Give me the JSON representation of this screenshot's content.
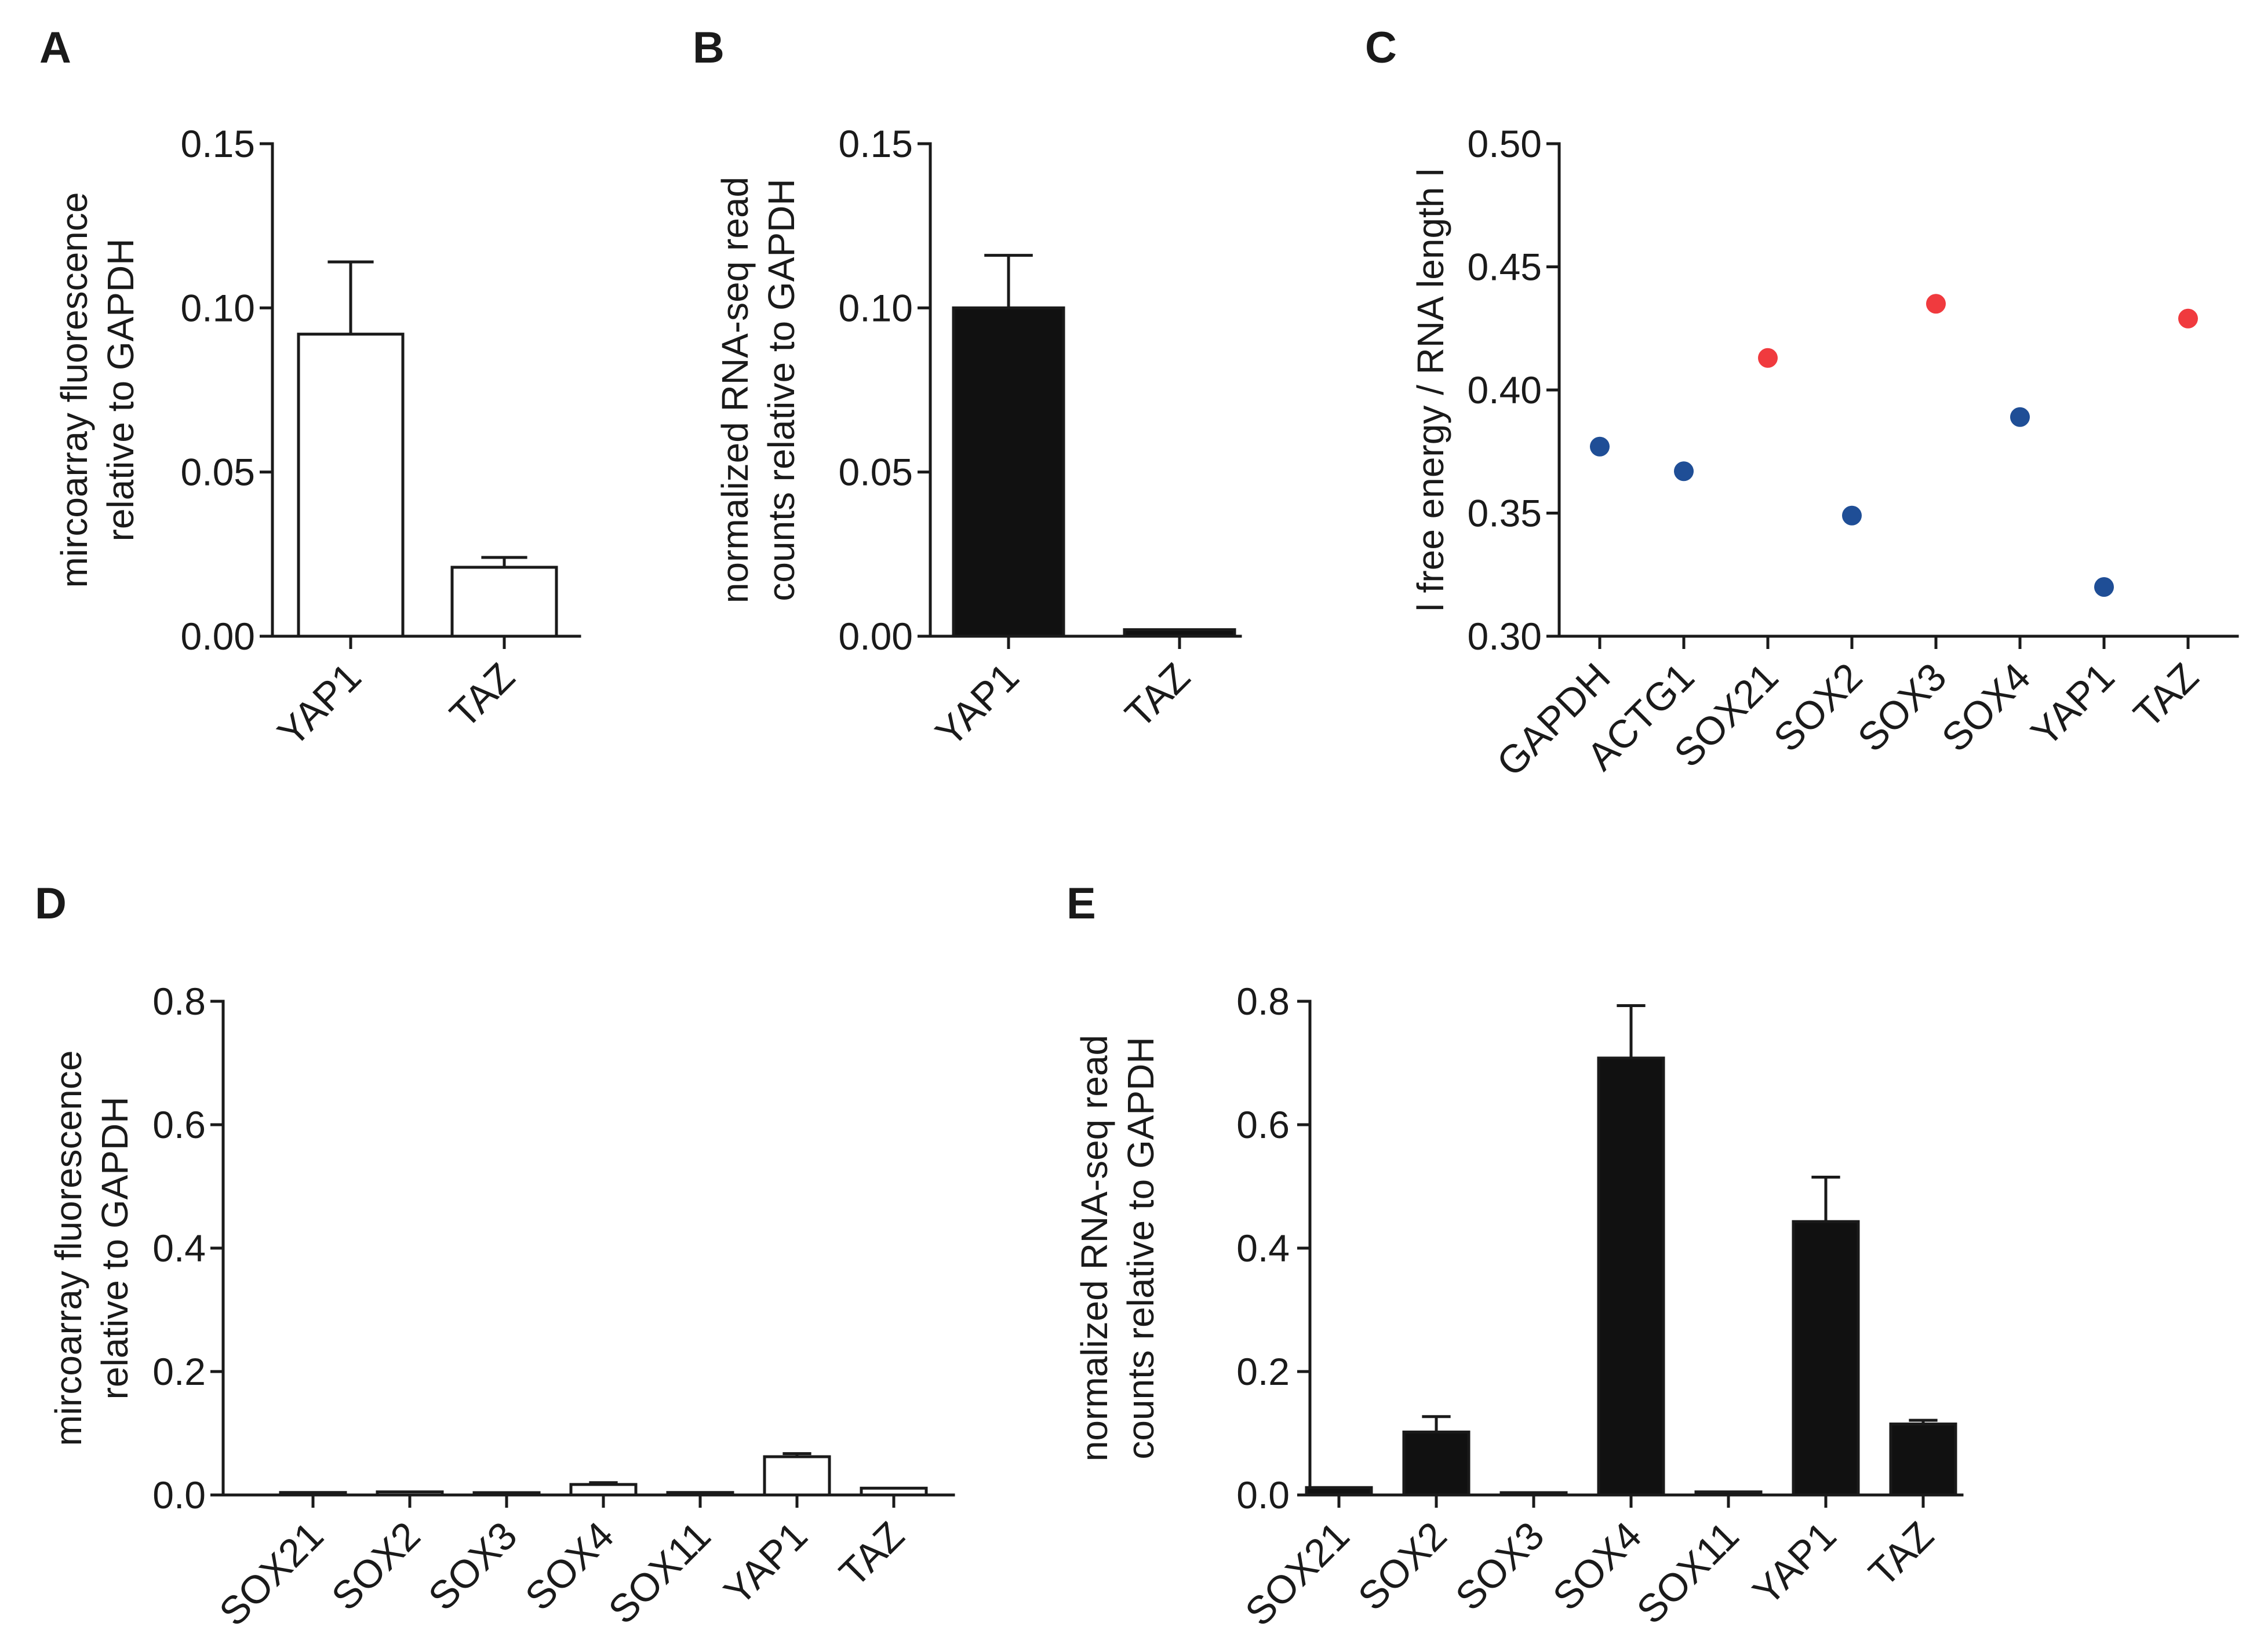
{
  "chart_data": [
    {
      "panel": "A",
      "type": "bar",
      "ylabel": [
        "mircoarray fluorescence",
        "relative to GAPDH"
      ],
      "categories": [
        "YAP1",
        "TAZ"
      ],
      "values": [
        0.092,
        0.021
      ],
      "errors": [
        0.022,
        0.003
      ],
      "ylim": [
        0,
        0.15
      ],
      "yticks": [
        "0.00",
        "0.05",
        "0.10",
        "0.15"
      ],
      "bar_fill": "#ffffff"
    },
    {
      "panel": "B",
      "type": "bar",
      "ylabel": [
        "normalized RNA-seq read",
        "counts relative to GAPDH"
      ],
      "categories": [
        "YAP1",
        "TAZ"
      ],
      "values": [
        0.1,
        0.002
      ],
      "errors": [
        0.016,
        0.0005
      ],
      "ylim": [
        0,
        0.15
      ],
      "yticks": [
        "0.00",
        "0.05",
        "0.10",
        "0.15"
      ],
      "bar_fill": "#111111"
    },
    {
      "panel": "C",
      "type": "scatter",
      "ylabel": [
        "l free energy / RNA length l"
      ],
      "categories": [
        "GAPDH",
        "ACTG1",
        "SOX21",
        "SOX2",
        "SOX3",
        "SOX4",
        "YAP1",
        "TAZ"
      ],
      "values": [
        0.377,
        0.367,
        0.413,
        0.349,
        0.435,
        0.389,
        0.32,
        0.429
      ],
      "point_colors": [
        "#1f4e96",
        "#1f4e96",
        "#f03a3e",
        "#1f4e96",
        "#f03a3e",
        "#1f4e96",
        "#1f4e96",
        "#f03a3e"
      ],
      "ylim": [
        0.3,
        0.5
      ],
      "yticks": [
        "0.30",
        "0.35",
        "0.40",
        "0.45",
        "0.50"
      ]
    },
    {
      "panel": "D",
      "type": "bar",
      "ylabel": [
        "mircoarray fluorescence",
        "relative to GAPDH"
      ],
      "categories": [
        "SOX21",
        "SOX2",
        "SOX3",
        "SOX4",
        "SOX11",
        "YAP1",
        "TAZ"
      ],
      "values": [
        0.004,
        0.005,
        0.001,
        0.017,
        0.004,
        0.062,
        0.011
      ],
      "errors": [
        0.001,
        0.002,
        0.0005,
        0.003,
        0.001,
        0.005,
        0.002
      ],
      "ylim": [
        0,
        0.8
      ],
      "yticks": [
        "0.0",
        "0.2",
        "0.4",
        "0.6",
        "0.8"
      ],
      "bar_fill": "#ffffff"
    },
    {
      "panel": "E",
      "type": "bar",
      "ylabel": [
        "normalized RNA-seq read",
        "counts relative to GAPDH"
      ],
      "categories": [
        "SOX21",
        "SOX2",
        "SOX3",
        "SOX4",
        "SOX11",
        "YAP1",
        "TAZ"
      ],
      "values": [
        0.012,
        0.102,
        0.001,
        0.708,
        0.005,
        0.443,
        0.115
      ],
      "errors": [
        0.002,
        0.025,
        0.0003,
        0.085,
        0.002,
        0.072,
        0.006
      ],
      "ylim": [
        0,
        0.8
      ],
      "yticks": [
        "0.0",
        "0.2",
        "0.4",
        "0.6",
        "0.8"
      ],
      "bar_fill": "#111111"
    }
  ]
}
